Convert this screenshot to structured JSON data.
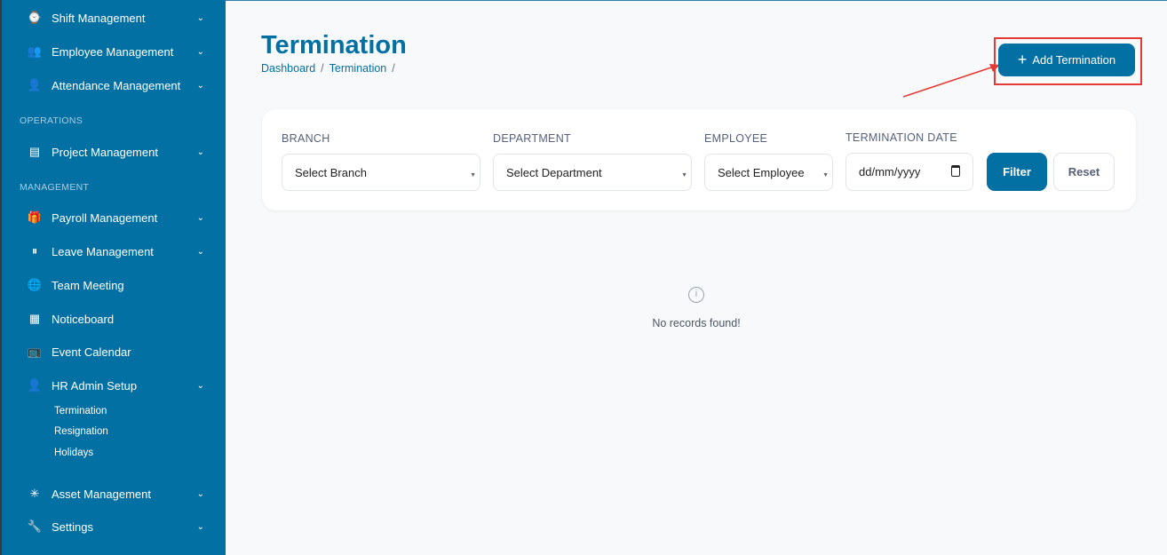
{
  "sidebar": {
    "items": [
      {
        "label": "Shift Management",
        "icon": "watch-icon",
        "chevron": true
      },
      {
        "label": "Employee Management",
        "icon": "users-icon",
        "chevron": true
      },
      {
        "label": "Attendance Management",
        "icon": "user-check-icon",
        "chevron": true
      },
      {
        "label": "Project Management",
        "icon": "layout-icon",
        "chevron": true
      },
      {
        "label": "Payroll Management",
        "icon": "gift-icon",
        "chevron": true
      },
      {
        "label": "Leave Management",
        "icon": "pause-circle-icon",
        "chevron": true
      },
      {
        "label": "Team Meeting",
        "icon": "globe-icon",
        "chevron": false
      },
      {
        "label": "Noticeboard",
        "icon": "calendar-icon",
        "chevron": false
      },
      {
        "label": "Event Calendar",
        "icon": "tv-icon",
        "chevron": false
      },
      {
        "label": "HR Admin Setup",
        "icon": "user-plus-icon",
        "chevron": true
      },
      {
        "label": "Asset Management",
        "icon": "loader-icon",
        "chevron": true
      },
      {
        "label": "Settings",
        "icon": "wrench-icon",
        "chevron": true
      }
    ],
    "sections": [
      "OPERATIONS",
      "MANAGEMENT"
    ],
    "subitems": [
      "Termination",
      "Resignation",
      "Holidays"
    ]
  },
  "header": {
    "title": "Termination",
    "breadcrumb": [
      "Dashboard",
      "Termination"
    ],
    "add_button": "Add Termination"
  },
  "filters": {
    "branch_label": "BRANCH",
    "branch_value": "Select Branch",
    "department_label": "DEPARTMENT",
    "department_value": "Select Department",
    "employee_label": "EMPLOYEE",
    "employee_value": "Select Employee",
    "date_label": "TERMINATION DATE",
    "date_placeholder": "dd/mm/yyyy",
    "filter_button": "Filter",
    "reset_button": "Reset"
  },
  "empty": {
    "message": "No records found!"
  },
  "colors": {
    "primary": "#0270a3",
    "highlight": "#e53935"
  }
}
